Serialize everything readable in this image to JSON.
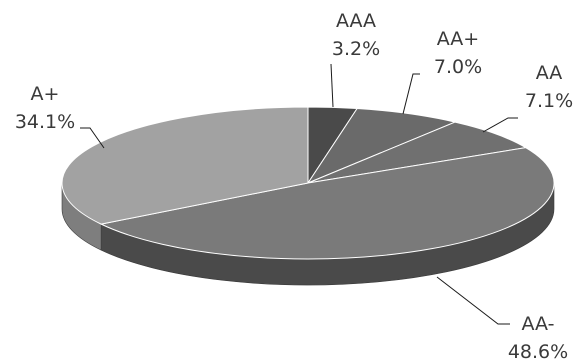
{
  "chart_data": {
    "type": "pie",
    "three_d": true,
    "slices": [
      {
        "label": "AAA",
        "value": 3.2,
        "value_text": "3.2%",
        "color": "#4a4a4a",
        "side_color": "#2f2f2f"
      },
      {
        "label": "AA+",
        "value": 7.0,
        "value_text": "7.0%",
        "color": "#6a6a6a",
        "side_color": "#4b4b4b"
      },
      {
        "label": "AA",
        "value": 7.1,
        "value_text": "7.1%",
        "color": "#707070",
        "side_color": "#505050"
      },
      {
        "label": "AA-",
        "value": 48.6,
        "value_text": "48.6%",
        "color": "#7a7a7a",
        "side_color": "#4a4a4a"
      },
      {
        "label": "A+",
        "value": 34.1,
        "value_text": "34.1%",
        "color": "#a2a2a2",
        "side_color": "#7e7e7e"
      }
    ],
    "start_angle": "12 o'clock",
    "direction": "clockwise",
    "legend": "none"
  }
}
